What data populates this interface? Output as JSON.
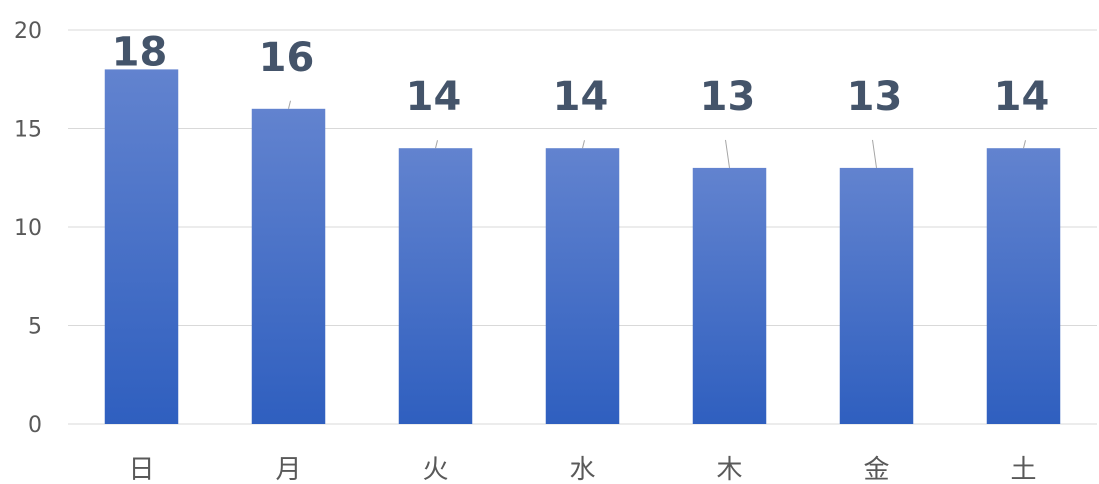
{
  "chart_data": {
    "type": "bar",
    "categories": [
      "日",
      "月",
      "火",
      "水",
      "木",
      "金",
      "土"
    ],
    "values": [
      18,
      16,
      14,
      14,
      13,
      13,
      14
    ],
    "title": "",
    "xlabel": "",
    "ylabel": "",
    "ylim": [
      0,
      20
    ],
    "yticks": [
      0,
      5,
      10,
      15,
      20
    ],
    "grid": true,
    "data_labels": true,
    "colors": {
      "bar_top": "#6283cf",
      "bar_bottom": "#2f5fbf",
      "grid": "#d9d9d9",
      "axis_text": "#595959",
      "data_label": "#44546a"
    }
  }
}
